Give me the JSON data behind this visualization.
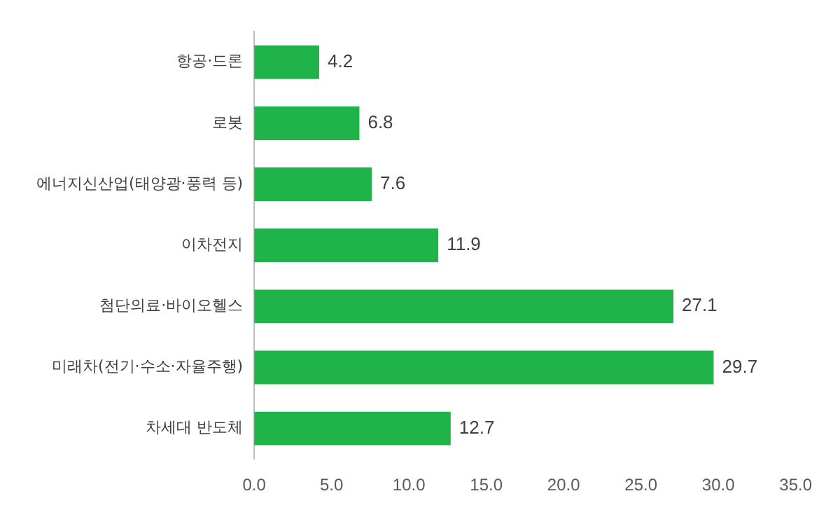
{
  "chart_data": {
    "type": "bar",
    "orientation": "horizontal",
    "categories": [
      "항공·드론",
      "로봇",
      "에너지신산업(태양광·풍력 등)",
      "이차전지",
      "첨단의료·바이오헬스",
      "미래차(전기·수소·자율주행)",
      "차세대 반도체"
    ],
    "values": [
      4.2,
      6.8,
      7.6,
      11.9,
      27.1,
      29.7,
      12.7
    ],
    "color": "#1fb34a",
    "xlim": [
      0,
      35
    ],
    "xticks": [
      {
        "value": 0,
        "label": "0.0"
      },
      {
        "value": 5,
        "label": "5.0"
      },
      {
        "value": 10,
        "label": "10.0"
      },
      {
        "value": 15,
        "label": "15.0"
      },
      {
        "value": 20,
        "label": "20.0"
      },
      {
        "value": 25,
        "label": "25.0"
      },
      {
        "value": 30,
        "label": "30.0"
      },
      {
        "value": 35,
        "label": "35.0"
      }
    ],
    "grid": false,
    "legend": false,
    "data_labels": true
  }
}
